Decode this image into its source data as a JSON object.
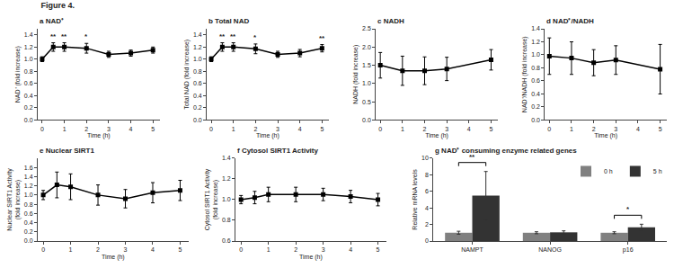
{
  "title": "Figure 4.",
  "chart_data": [
    {
      "type": "line",
      "title": "a NAD⁺",
      "xlabel": "Time (h)",
      "ylabel": "NAD⁺ (fold increase)",
      "x": [
        0,
        0.5,
        1,
        2,
        3,
        4,
        5
      ],
      "values": [
        1.0,
        1.2,
        1.2,
        1.18,
        1.08,
        1.1,
        1.15
      ],
      "errors": [
        0.04,
        0.07,
        0.07,
        0.08,
        0.05,
        0.05,
        0.05
      ],
      "color": "#000000",
      "marker": "square",
      "grid": false,
      "xlim": [
        -0.2,
        5.3
      ],
      "xticks": [
        0,
        1,
        2,
        3,
        4,
        5
      ],
      "ylim": [
        0.0,
        1.5
      ],
      "yticks": [
        {
          "value": 0,
          "label": "0.0"
        },
        0.2,
        0.4,
        0.6,
        0.8,
        {
          "value": 1,
          "label": "1.0"
        },
        1.2,
        1.4
      ],
      "annotations": [
        {
          "x": 0.5,
          "text": "**"
        },
        {
          "x": 1,
          "text": "**"
        },
        {
          "x": 2,
          "text": "*"
        }
      ]
    },
    {
      "type": "line",
      "title": "b Total NAD",
      "xlabel": "Time (h)",
      "ylabel": "Total NAD (fold increase)",
      "x": [
        0,
        0.5,
        1,
        2,
        3,
        4,
        5
      ],
      "values": [
        1.0,
        1.2,
        1.2,
        1.17,
        1.08,
        1.1,
        1.18
      ],
      "errors": [
        0.04,
        0.07,
        0.07,
        0.08,
        0.05,
        0.06,
        0.06
      ],
      "color": "#000000",
      "marker": "square",
      "grid": false,
      "xlim": [
        -0.2,
        5.3
      ],
      "xticks": [
        0,
        1,
        2,
        3,
        4,
        5
      ],
      "ylim": [
        0.0,
        1.5
      ],
      "yticks": [
        {
          "value": 0,
          "label": "0.0"
        },
        0.2,
        0.4,
        0.6,
        0.8,
        {
          "value": 1,
          "label": "1.0"
        },
        1.2,
        1.4
      ],
      "annotations": [
        {
          "x": 0.5,
          "text": "**"
        },
        {
          "x": 1,
          "text": "**"
        },
        {
          "x": 2,
          "text": "*"
        },
        {
          "x": 5,
          "text": "**"
        }
      ]
    },
    {
      "type": "line",
      "title": "c NADH",
      "xlabel": "Time (h)",
      "ylabel": "NADH (fold increase)",
      "x": [
        0,
        1,
        2,
        3,
        5
      ],
      "values": [
        1.5,
        1.35,
        1.35,
        1.4,
        1.65
      ],
      "errors": [
        0.35,
        0.4,
        0.38,
        0.32,
        0.28
      ],
      "color": "#000000",
      "marker": "square",
      "grid": false,
      "xlim": [
        -0.2,
        5.3
      ],
      "xticks": [
        0,
        1,
        2,
        3,
        4,
        5
      ],
      "ylim": [
        0.0,
        2.5
      ],
      "yticks": [
        {
          "value": 0,
          "label": "0.0"
        },
        0.5,
        {
          "value": 1,
          "label": "1.0"
        },
        1.5,
        {
          "value": 2,
          "label": "2.0"
        },
        2.5
      ]
    },
    {
      "type": "line",
      "title": "d NAD⁺/NADH",
      "xlabel": "Time (h)",
      "ylabel": "NAD⁺/NADH (fold increase)",
      "x": [
        0,
        1,
        2,
        3,
        5
      ],
      "values": [
        0.98,
        0.95,
        0.88,
        0.92,
        0.78
      ],
      "errors": [
        0.28,
        0.25,
        0.2,
        0.22,
        0.38
      ],
      "color": "#000000",
      "marker": "square",
      "grid": false,
      "xlim": [
        -0.2,
        5.3
      ],
      "xticks": [
        0,
        1,
        2,
        3,
        4,
        5
      ],
      "ylim": [
        0.0,
        1.4
      ],
      "yticks": [
        {
          "value": 0,
          "label": "0.0"
        },
        0.2,
        0.4,
        0.6,
        0.8,
        {
          "value": 1,
          "label": "1.0"
        },
        1.2,
        1.4
      ]
    },
    {
      "type": "line",
      "title": "e Nuclear SIRT1",
      "xlabel": "Time (h)",
      "ylabel": "Nuclear SIRT1 Activity\n(fold increase)",
      "x": [
        0,
        0.5,
        1,
        2,
        3,
        4,
        5
      ],
      "values": [
        1.0,
        1.22,
        1.18,
        1.0,
        0.92,
        1.05,
        1.1
      ],
      "errors": [
        0.1,
        0.28,
        0.28,
        0.22,
        0.2,
        0.22,
        0.22
      ],
      "color": "#000000",
      "marker": "square",
      "grid": false,
      "xlim": [
        -0.2,
        5.3
      ],
      "xticks": [
        0,
        1,
        2,
        3,
        4,
        5
      ],
      "ylim": [
        0.0,
        1.8
      ],
      "yticks": [
        {
          "value": 0,
          "label": "0.0"
        },
        0.2,
        0.4,
        0.6,
        0.8,
        {
          "value": 1,
          "label": "1.0"
        },
        1.2,
        1.4,
        1.6
      ]
    },
    {
      "type": "line",
      "title": "f Cytosol SIRT1 Activity",
      "xlabel": "Time (h)",
      "ylabel": "Cytosol SIRT1 Activity\n(fold increase)",
      "x": [
        0,
        0.5,
        1,
        2,
        3,
        4,
        5
      ],
      "values": [
        1.0,
        1.02,
        1.05,
        1.05,
        1.05,
        1.03,
        1.0
      ],
      "errors": [
        0.04,
        0.06,
        0.07,
        0.07,
        0.06,
        0.06,
        0.06
      ],
      "color": "#000000",
      "marker": "square",
      "grid": false,
      "xlim": [
        -0.2,
        5.3
      ],
      "xticks": [
        0,
        1,
        2,
        3,
        4,
        5
      ],
      "ylim": [
        0.6,
        1.4
      ],
      "yticks": [
        0.6,
        0.8,
        {
          "value": 1,
          "label": "1.0"
        },
        1.2,
        1.4
      ]
    },
    {
      "type": "bar",
      "title": "g NAD⁺ consuming enzyme related genes",
      "ylabel": "Relative mRNA levels",
      "categories": [
        "NAMPT",
        "NANOG",
        "p16"
      ],
      "series": [
        {
          "name": "0 h",
          "color": "#808080",
          "values": [
            1.0,
            1.0,
            1.0
          ],
          "errors": [
            0.18,
            0.12,
            0.12
          ]
        },
        {
          "name": "5 h",
          "color": "#333333",
          "values": [
            5.5,
            1.05,
            1.65
          ],
          "errors": [
            2.9,
            0.18,
            0.38
          ]
        }
      ],
      "ylim": [
        0,
        10
      ],
      "yticks": [
        0,
        2,
        4,
        6,
        8,
        10
      ],
      "grid": false,
      "legend": "upper right",
      "annotations": [
        {
          "category": "NAMPT",
          "text": "**"
        },
        {
          "category": "p16",
          "text": "*"
        }
      ]
    }
  ]
}
